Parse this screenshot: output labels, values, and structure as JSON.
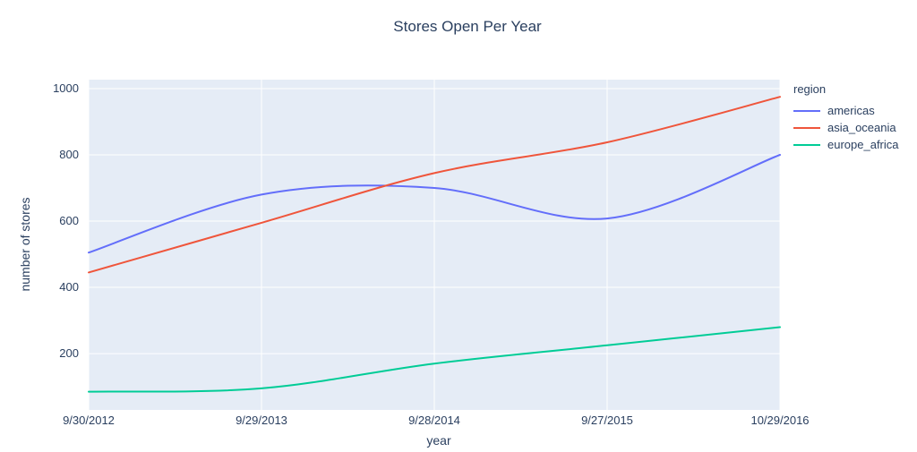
{
  "chart_data": {
    "type": "line",
    "line_shape": "spline",
    "title": "Stores Open Per Year",
    "xlabel": "year",
    "ylabel": "number of stores",
    "legend_title": "region",
    "legend_position": "right",
    "grid": true,
    "plot_bg_color": "#E5ECF6",
    "grid_color": "#FFFFFF",
    "text_color": "#2a3f5f",
    "categories": [
      "9/30/2012",
      "9/29/2013",
      "9/28/2014",
      "9/27/2015",
      "10/29/2016"
    ],
    "series": [
      {
        "name": "americas",
        "color": "#636EFA",
        "values": [
          505,
          680,
          700,
          608,
          800
        ]
      },
      {
        "name": "asia_oceania",
        "color": "#EF553B",
        "values": [
          445,
          595,
          745,
          838,
          975
        ]
      },
      {
        "name": "europe_africa",
        "color": "#00CC96",
        "values": [
          85,
          95,
          170,
          225,
          280
        ]
      }
    ],
    "yticks": [
      200,
      400,
      600,
      800,
      1000
    ],
    "ylim": [
      30,
      1027
    ]
  }
}
